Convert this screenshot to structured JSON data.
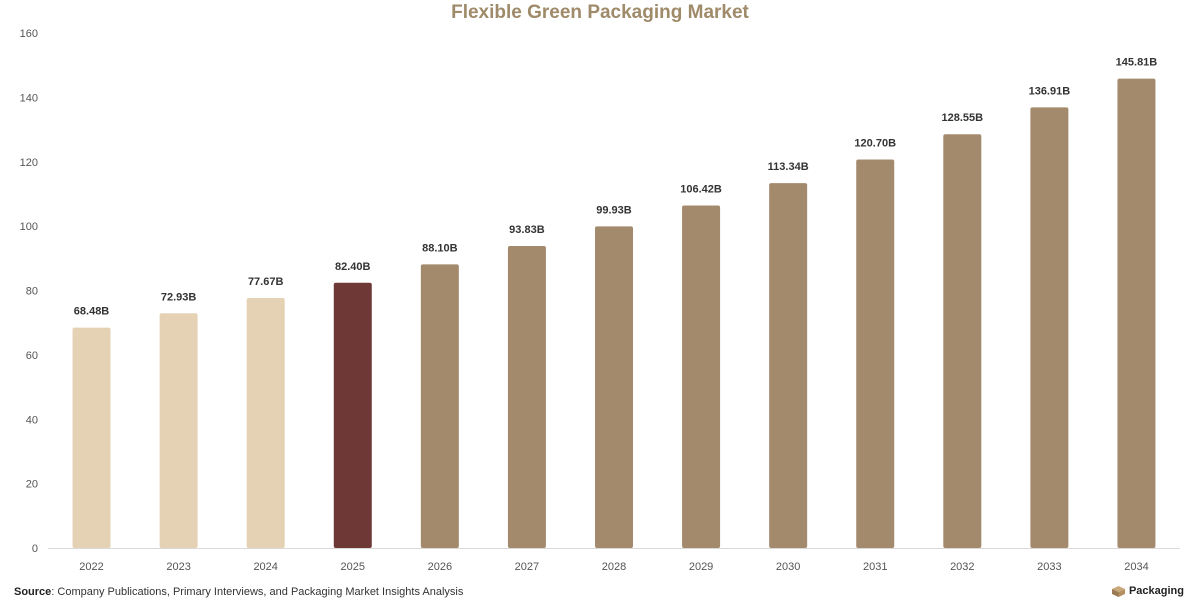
{
  "title": "Flexible Green Packaging Market",
  "source": {
    "label": "Source",
    "text": ": Company Publications, Primary Interviews, and Packaging Market Insights Analysis"
  },
  "brand": {
    "text": "Packaging",
    "icon": "box-icon"
  },
  "colors": {
    "historical": "#e5d2b5",
    "current": "#6e3836",
    "forecast": "#a48a6c",
    "title": "#9f8a69"
  },
  "chart_data": {
    "type": "bar",
    "title": "Flexible Green Packaging Market",
    "xlabel": "",
    "ylabel": "",
    "ylim": [
      0,
      160
    ],
    "yticks": [
      0,
      20,
      40,
      60,
      80,
      100,
      120,
      140,
      160
    ],
    "grid": false,
    "legend": "none",
    "categories": [
      "2022",
      "2023",
      "2024",
      "2025",
      "2026",
      "2027",
      "2028",
      "2029",
      "2030",
      "2031",
      "2032",
      "2033",
      "2034"
    ],
    "values": [
      68.48,
      72.93,
      77.67,
      82.4,
      88.1,
      93.83,
      99.93,
      106.42,
      113.34,
      120.7,
      128.55,
      136.91,
      145.81
    ],
    "data_labels": [
      "68.48B",
      "72.93B",
      "77.67B",
      "82.40B",
      "88.10B",
      "93.83B",
      "99.93B",
      "106.42B",
      "113.34B",
      "120.70B",
      "128.55B",
      "136.91B",
      "145.81B"
    ],
    "bar_groups": [
      "historical",
      "historical",
      "historical",
      "current",
      "forecast",
      "forecast",
      "forecast",
      "forecast",
      "forecast",
      "forecast",
      "forecast",
      "forecast",
      "forecast"
    ]
  }
}
